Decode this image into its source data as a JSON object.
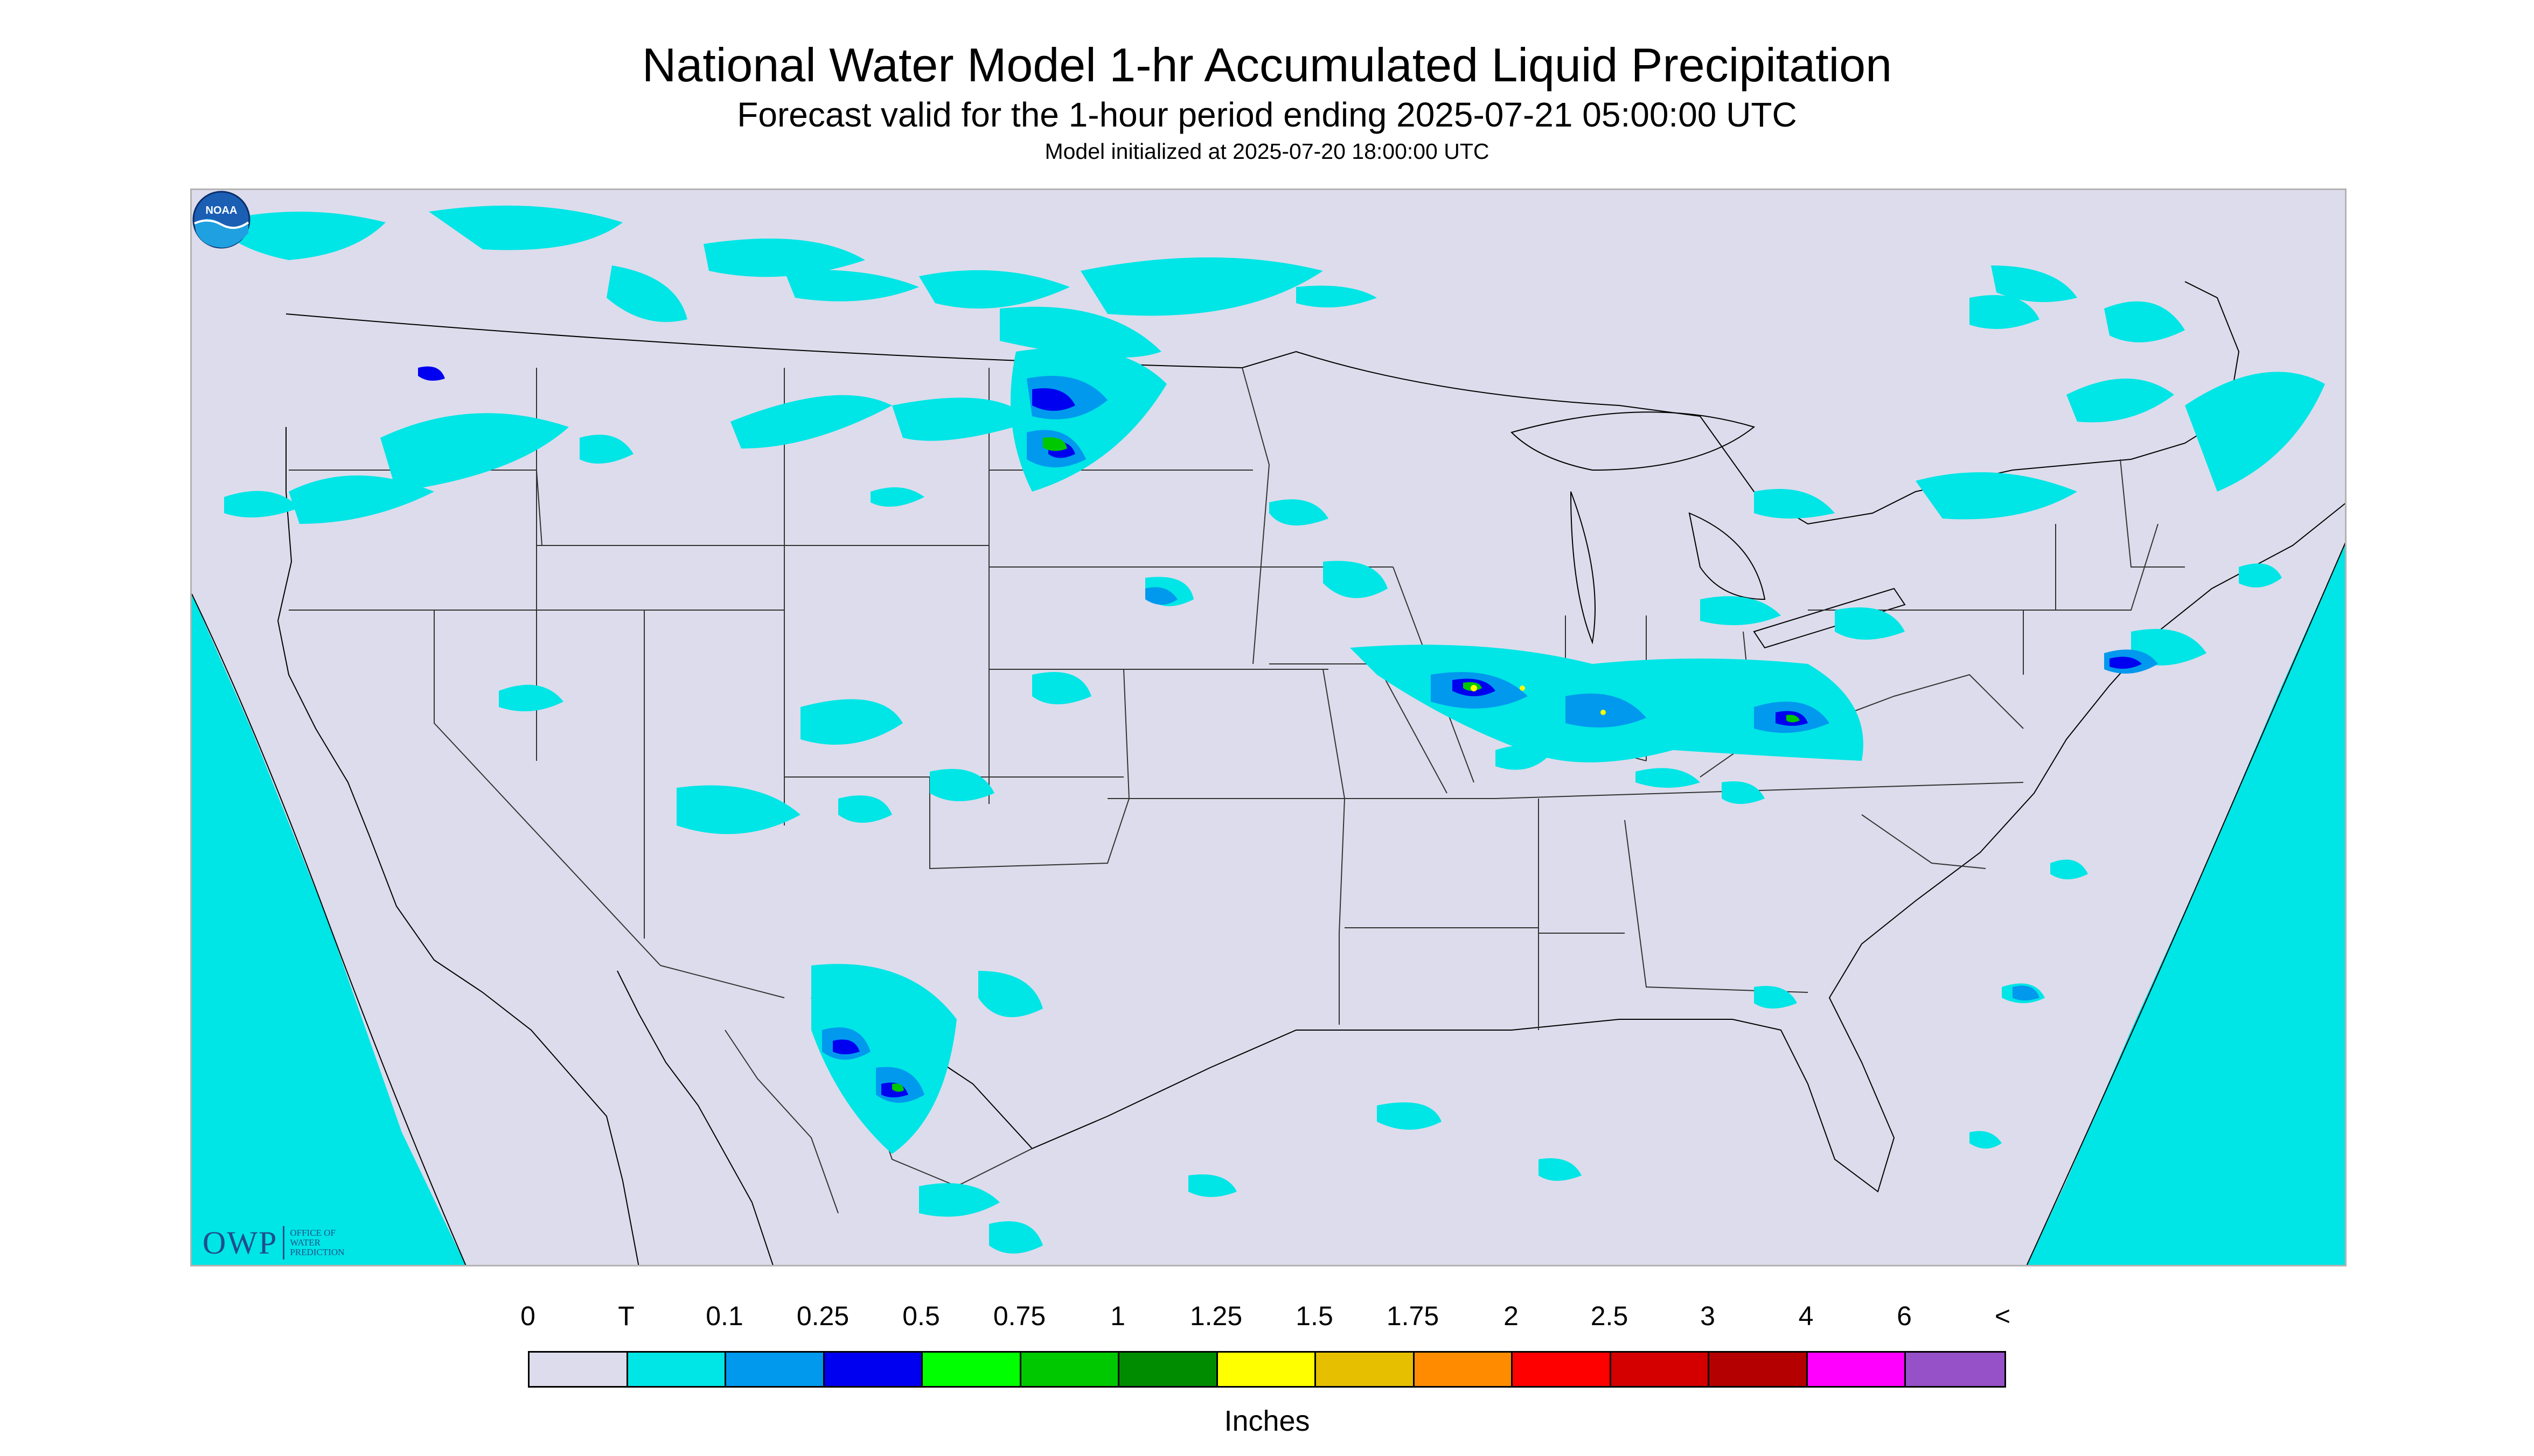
{
  "title": "National Water Model 1-hr Accumulated Liquid Precipitation",
  "subtitle": "Forecast valid for the 1-hour period ending 2025-07-21 05:00:00 UTC",
  "init_line": "Model initialized at 2025-07-20 18:00:00 UTC",
  "logo_owp": {
    "mark": "OWP",
    "line1": "OFFICE OF",
    "line2": "WATER",
    "line3": "PREDICTION"
  },
  "logo_noaa": {
    "text": "NOAA"
  },
  "legend": {
    "tick_labels": [
      "0",
      "T",
      "0.1",
      "0.25",
      "0.5",
      "0.75",
      "1",
      "1.25",
      "1.5",
      "1.75",
      "2",
      "2.5",
      "3",
      "4",
      "6",
      "<"
    ],
    "colors": [
      "#dcdcec",
      "#00e5e5",
      "#0099ee",
      "#0000f0",
      "#00ff00",
      "#00c800",
      "#008c00",
      "#ffff00",
      "#e5bf00",
      "#ff8c00",
      "#ff0000",
      "#d40000",
      "#b40000",
      "#ff00ff",
      "#9650c8"
    ],
    "units": "Inches"
  },
  "map_colors": {
    "background": "#dcdcec",
    "trace": "#00e5e5",
    "light": "#0099ee",
    "moderate": "#0000f0",
    "heavy": "#00c800",
    "very_heavy": "#ffff00",
    "border_line": "#000000"
  }
}
